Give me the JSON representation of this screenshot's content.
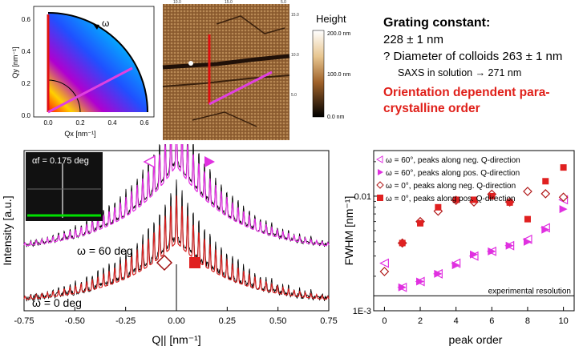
{
  "polar_map": {
    "omega_label": "ω",
    "ylabel": "Qy [nm⁻¹]",
    "xlabel": "Qx [nm⁻¹]",
    "xticks": [
      "0.0",
      "0.2",
      "0.4",
      "0.6"
    ],
    "yticks": [
      "0.0",
      "0.2",
      "0.4",
      "0.6"
    ]
  },
  "afm_image": {
    "height_label": "Height",
    "scale_labels": [
      "200.0 nm",
      "100.0 nm",
      "0.0 nm"
    ],
    "edge_ticks": [
      "10.0",
      "15.0",
      "5.0",
      "15.0",
      "10.0",
      "5.0"
    ]
  },
  "info": {
    "title": "Grating constant:",
    "line1": "228 ± 1 nm",
    "line2": "?  Diameter of colloids 263 ± 1 nm",
    "line3": "SAXS in solution → 271 nm",
    "red1": "Orientation dependent para-",
    "red2": "crystalline order"
  },
  "saxs_plot": {
    "inset_label": "αf = 0.175 deg",
    "curve_labels": [
      "ω = 60 deg",
      "ω = 0 deg"
    ],
    "ylabel": "Intensity [a.u.]",
    "xlabel": "Q|| [nm⁻¹]",
    "colors": {
      "upper_fit": "#e02ee0",
      "lower_fit": "#d42020",
      "data": "#000000"
    }
  },
  "fwhm_plot": {
    "legend": [
      "ω = 60°, peaks along neg. Q-direction",
      "ω = 60°, peaks along pos. Q-direction",
      "ω = 0°, peaks along neg. Q-direction",
      "ω = 0°, peaks along pos. Q-direction"
    ],
    "resolution_label": "experimental resolution",
    "ylabel": "FWHM [nm⁻¹]",
    "xlabel": "peak order",
    "ytick_labels": [
      "0.01",
      "1E-3"
    ]
  },
  "chart_data": [
    {
      "type": "line",
      "title": "",
      "xlabel": "Q|| [nm⁻¹]",
      "ylabel": "Intensity [a.u.]",
      "xlim": [
        -0.75,
        0.75
      ],
      "x_ticks": [
        "-0.75",
        "-0.50",
        "-0.25",
        "0.00",
        "0.25",
        "0.50",
        "0.75"
      ],
      "series": [
        {
          "name": "ω = 60 deg",
          "peak_spacing": 0.0276,
          "edge_level": 0.12,
          "center_level": 1.0
        },
        {
          "name": "ω = 0 deg",
          "peak_spacing": 0.0276,
          "edge_level": 0.04,
          "center_level": 0.62
        }
      ]
    },
    {
      "type": "scatter",
      "title": "",
      "xlabel": "peak order",
      "ylabel": "FWHM [nm⁻¹]",
      "xlim": [
        -0.6,
        10.6
      ],
      "ylim": [
        0.001,
        0.025
      ],
      "yscale": "log",
      "x_ticks": [
        0,
        2,
        4,
        6,
        8,
        10
      ],
      "resolution": 0.00135,
      "series": [
        {
          "name": "ω = 60°, peaks along neg. Q-direction",
          "marker": "tri-left-open",
          "color": "#e030e0",
          "x": [
            0,
            1,
            2,
            3,
            4,
            5,
            6,
            7,
            8,
            9,
            10
          ],
          "y": [
            0.0026,
            0.0016,
            0.0018,
            0.0021,
            0.0026,
            0.003,
            0.0033,
            0.0037,
            0.0042,
            0.0053,
            0.0093
          ]
        },
        {
          "name": "ω = 60°, peaks along pos. Q-direction",
          "marker": "tri-right-filled",
          "color": "#e030e0",
          "x": [
            1,
            2,
            3,
            4,
            5,
            6,
            7,
            8,
            9,
            10
          ],
          "y": [
            0.0016,
            0.0018,
            0.0021,
            0.0025,
            0.0031,
            0.0033,
            0.0037,
            0.004,
            0.0051,
            0.0077
          ]
        },
        {
          "name": "ω = 0°, peaks along neg. Q-direction",
          "marker": "diamond-open",
          "color": "#b01818",
          "x": [
            0,
            1,
            2,
            3,
            4,
            5,
            6,
            7,
            8,
            9,
            10
          ],
          "y": [
            0.0022,
            0.0039,
            0.006,
            0.0074,
            0.0092,
            0.0089,
            0.0104,
            0.0089,
            0.011,
            0.0105,
            0.0098
          ]
        },
        {
          "name": "ω = 0°, peaks along pos. Q-direction",
          "marker": "square-filled",
          "color": "#e02020",
          "x": [
            1,
            2,
            3,
            4,
            5,
            6,
            7,
            8,
            9,
            10
          ],
          "y": [
            0.0039,
            0.0058,
            0.008,
            0.0093,
            0.0093,
            0.01,
            0.0088,
            0.0063,
            0.0135,
            0.0178
          ]
        }
      ]
    }
  ]
}
